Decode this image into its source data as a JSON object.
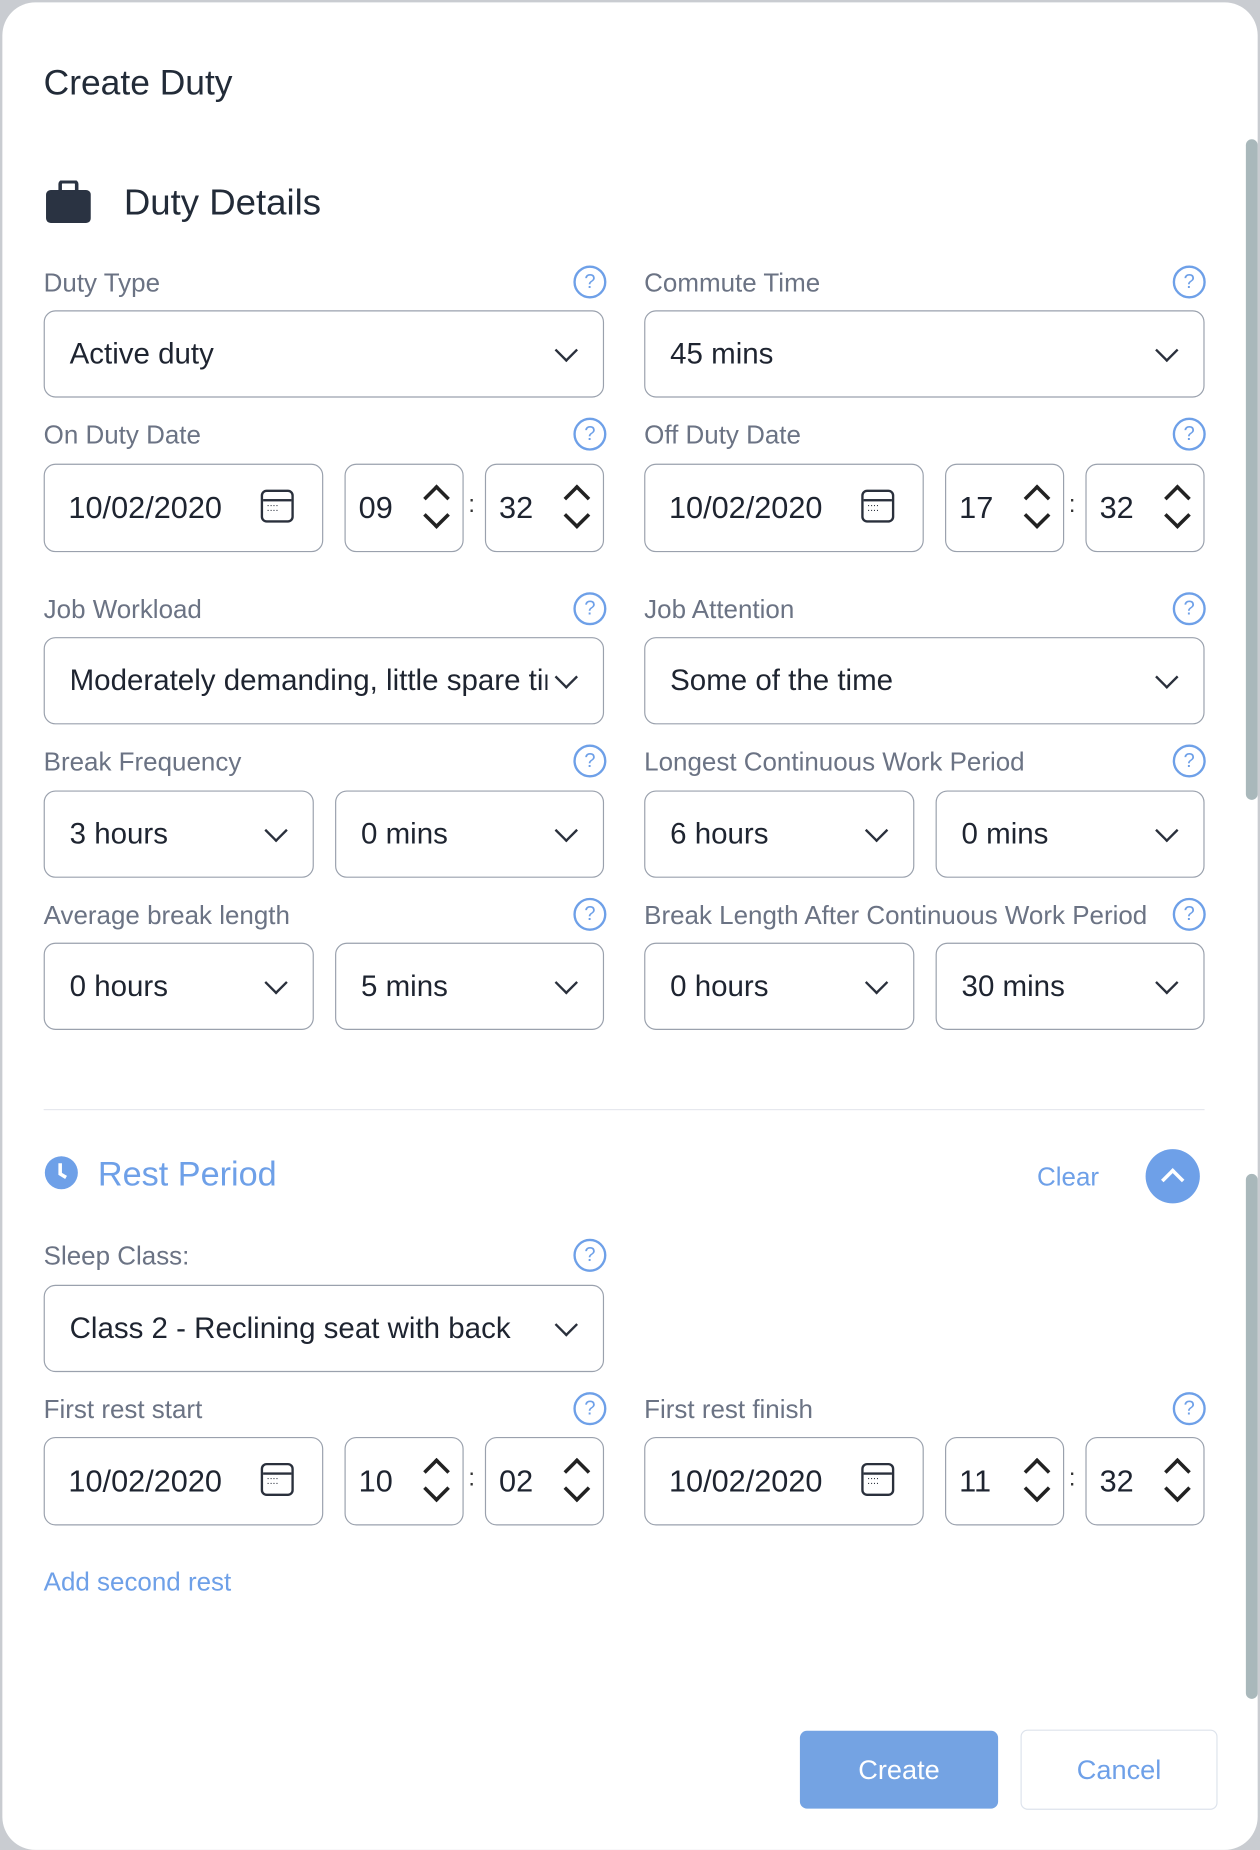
{
  "title": "Create Duty",
  "duty_details": {
    "heading": "Duty Details",
    "duty_type": {
      "label": "Duty Type",
      "value": "Active duty"
    },
    "commute_time": {
      "label": "Commute Time",
      "value": "45 mins"
    },
    "on_duty": {
      "label": "On Duty Date",
      "date": "10/02/2020",
      "hour": "09",
      "minute": "32"
    },
    "off_duty": {
      "label": "Off Duty Date",
      "date": "10/02/2020",
      "hour": "17",
      "minute": "32"
    },
    "job_workload": {
      "label": "Job Workload",
      "value": "Moderately demanding, little spare time"
    },
    "job_attention": {
      "label": "Job Attention",
      "value": "Some of the time"
    },
    "break_frequency": {
      "label": "Break Frequency",
      "hours": "3 hours",
      "mins": "0 mins"
    },
    "longest_work": {
      "label": "Longest Continuous Work Period",
      "hours": "6 hours",
      "mins": "0 mins"
    },
    "avg_break": {
      "label": "Average break length",
      "hours": "0 hours",
      "mins": "5 mins"
    },
    "break_after": {
      "label": "Break Length After Continuous Work Period",
      "hours": "0 hours",
      "mins": "30 mins"
    }
  },
  "rest_period": {
    "heading": "Rest Period",
    "clear": "Clear",
    "sleep_class": {
      "label": "Sleep Class:",
      "value": "Class 2 - Reclining seat with back"
    },
    "first_start": {
      "label": "First rest start",
      "date": "10/02/2020",
      "hour": "10",
      "minute": "02"
    },
    "first_finish": {
      "label": "First rest finish",
      "date": "10/02/2020",
      "hour": "11",
      "minute": "32"
    },
    "add_second": "Add second rest"
  },
  "buttons": {
    "create": "Create",
    "cancel": "Cancel"
  },
  "help_glyph": "?",
  "colon": ":",
  "colors": {
    "accent": "#6ea0e8",
    "primary_button": "#74a3e3",
    "text": "#222b38",
    "label": "#6b7384"
  }
}
